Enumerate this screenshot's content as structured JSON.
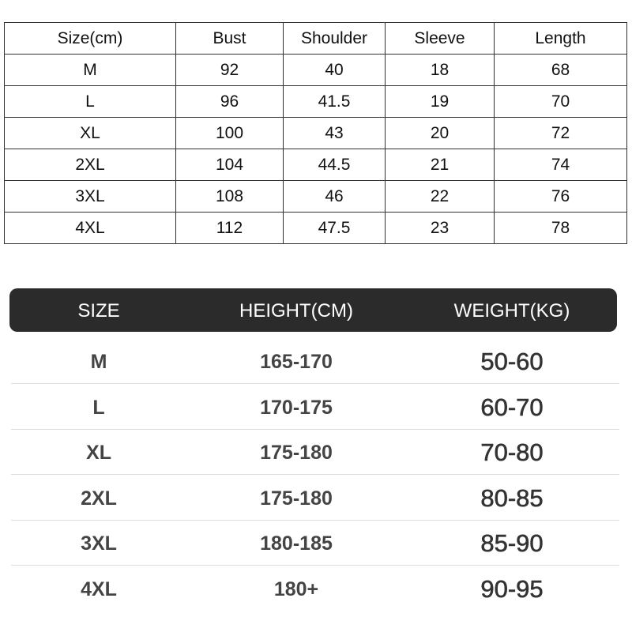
{
  "measurements_table": {
    "header": [
      "Size(cm)",
      "Bust",
      "Shoulder",
      "Sleeve",
      "Length"
    ],
    "rows": [
      [
        "M",
        "92",
        "40",
        "18",
        "68"
      ],
      [
        "L",
        "96",
        "41.5",
        "19",
        "70"
      ],
      [
        "XL",
        "100",
        "43",
        "20",
        "72"
      ],
      [
        "2XL",
        "104",
        "44.5",
        "21",
        "74"
      ],
      [
        "3XL",
        "108",
        "46",
        "22",
        "76"
      ],
      [
        "4XL",
        "112",
        "47.5",
        "23",
        "78"
      ]
    ]
  },
  "fit_table": {
    "header": [
      "SIZE",
      "HEIGHT(CM)",
      "WEIGHT(KG)"
    ],
    "rows": [
      [
        "M",
        "165-170",
        "50-60"
      ],
      [
        "L",
        "170-175",
        "60-70"
      ],
      [
        "XL",
        "175-180",
        "70-80"
      ],
      [
        "2XL",
        "175-180",
        "80-85"
      ],
      [
        "3XL",
        "180-185",
        "85-90"
      ],
      [
        "4XL",
        "180+",
        "90-95"
      ]
    ]
  }
}
